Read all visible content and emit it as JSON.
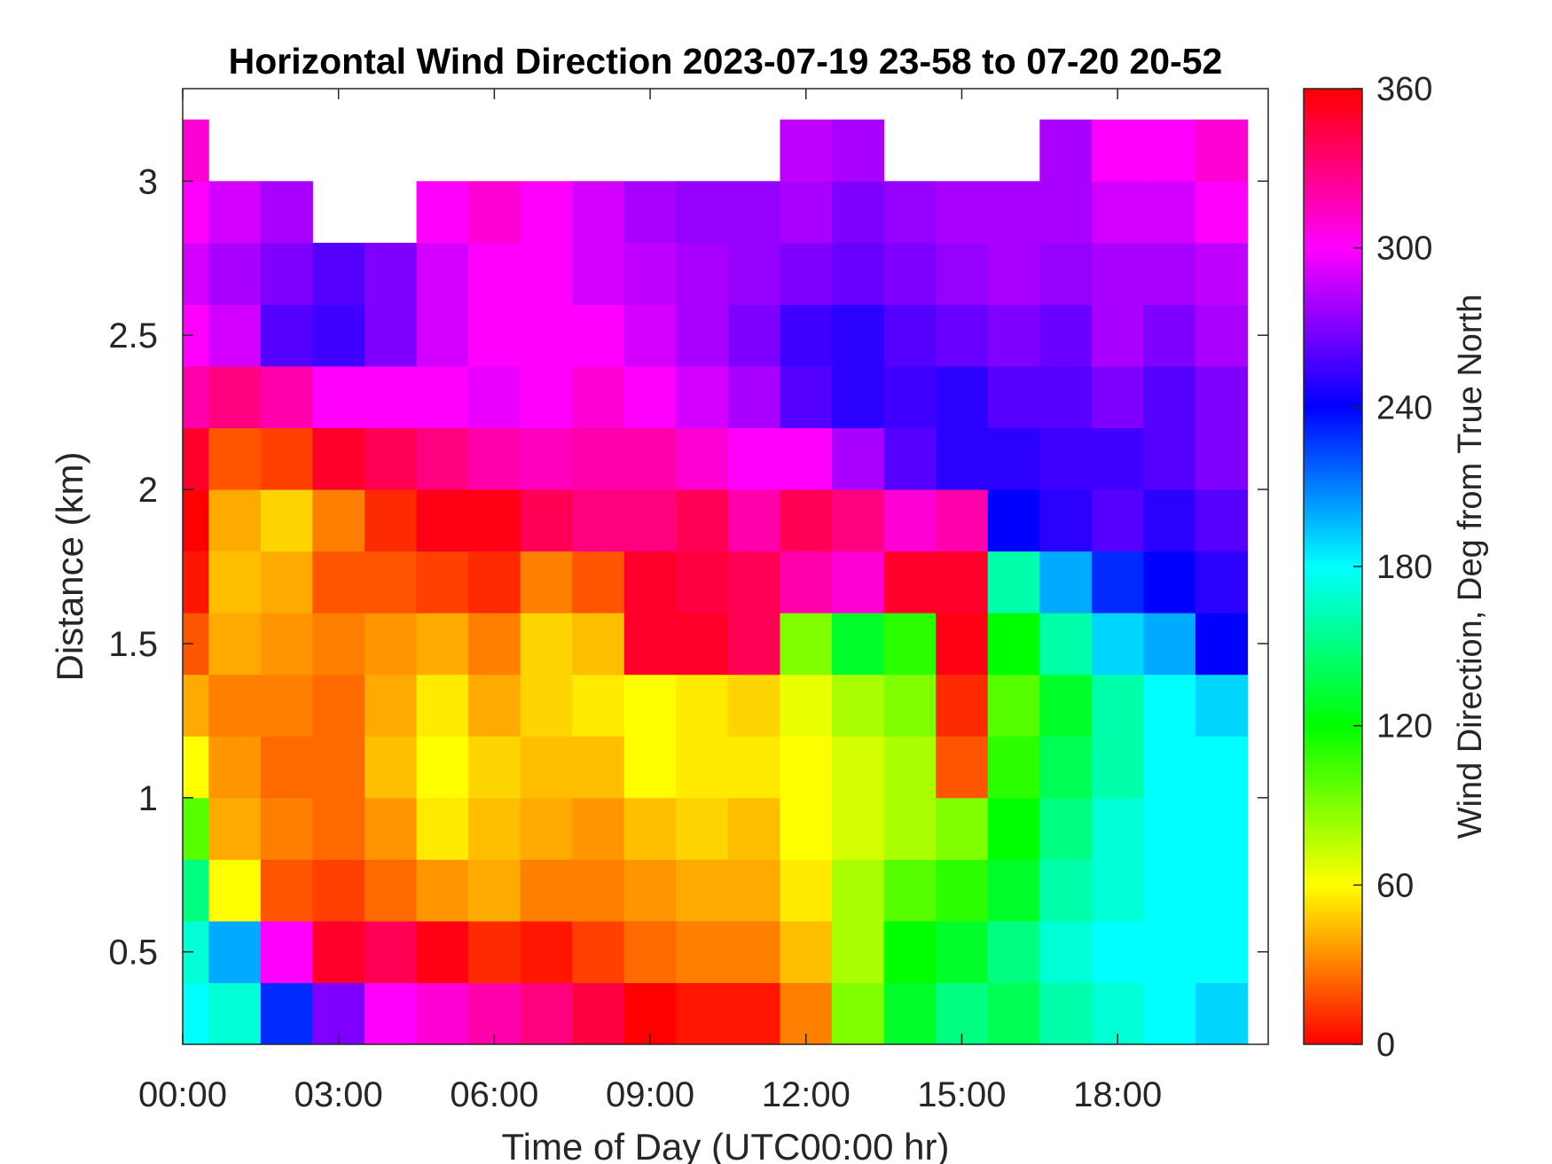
{
  "chart_data": {
    "type": "heatmap",
    "title": "Horizontal Wind Direction 2023-07-19 23-58 to 07-20 20-52",
    "xlabel": "Time of Day (UTC00:00 hr)",
    "ylabel": "Distance (km)",
    "colorbar_label": "Wind Direction, Deg from True North",
    "xlim_hours": [
      0,
      20.9
    ],
    "ylim_km": [
      0.2,
      3.3
    ],
    "clim": [
      0,
      360
    ],
    "colormap": "hsv",
    "x_ticks": [
      {
        "value": 0,
        "label": "00:00"
      },
      {
        "value": 3,
        "label": "03:00"
      },
      {
        "value": 6,
        "label": "06:00"
      },
      {
        "value": 9,
        "label": "09:00"
      },
      {
        "value": 12,
        "label": "12:00"
      },
      {
        "value": 15,
        "label": "15:00"
      },
      {
        "value": 18,
        "label": "18:00"
      }
    ],
    "y_ticks": [
      {
        "value": 0.5,
        "label": "0.5"
      },
      {
        "value": 1,
        "label": "1"
      },
      {
        "value": 1.5,
        "label": "1.5"
      },
      {
        "value": 2,
        "label": "2"
      },
      {
        "value": 2.5,
        "label": "2.5"
      },
      {
        "value": 3,
        "label": "3"
      }
    ],
    "colorbar_ticks": [
      {
        "value": 0,
        "label": "0"
      },
      {
        "value": 60,
        "label": "60"
      },
      {
        "value": 120,
        "label": "120"
      },
      {
        "value": 180,
        "label": "180"
      },
      {
        "value": 240,
        "label": "240"
      },
      {
        "value": 300,
        "label": "300"
      },
      {
        "value": 360,
        "label": "360"
      }
    ],
    "columns_hours": [
      0,
      1,
      2,
      3,
      4,
      5,
      6,
      7,
      8,
      9,
      10,
      11,
      12,
      13,
      14,
      15,
      16,
      17,
      18,
      19,
      20
    ],
    "rows_km": [
      0.3,
      0.5,
      0.7,
      0.9,
      1.1,
      1.3,
      1.5,
      1.7,
      1.9,
      2.1,
      2.3,
      2.5,
      2.7,
      2.9,
      3.1
    ],
    "direction_deg": [
      [
        180,
        170,
        230,
        270,
        300,
        310,
        320,
        330,
        345,
        0,
        5,
        5,
        30,
        90,
        130,
        150,
        140,
        160,
        170,
        180,
        190
      ],
      [
        170,
        200,
        300,
        350,
        340,
        355,
        10,
        5,
        15,
        25,
        30,
        30,
        45,
        80,
        120,
        130,
        150,
        170,
        180,
        180,
        180
      ],
      [
        150,
        60,
        20,
        15,
        25,
        35,
        40,
        30,
        30,
        35,
        40,
        40,
        55,
        80,
        100,
        110,
        130,
        160,
        170,
        180,
        180
      ],
      [
        100,
        40,
        30,
        25,
        35,
        55,
        45,
        40,
        35,
        45,
        50,
        45,
        60,
        70,
        80,
        90,
        120,
        150,
        170,
        180,
        180
      ],
      [
        60,
        35,
        25,
        25,
        45,
        60,
        50,
        45,
        45,
        60,
        55,
        55,
        60,
        70,
        80,
        20,
        110,
        140,
        160,
        180,
        180
      ],
      [
        40,
        30,
        30,
        25,
        40,
        55,
        40,
        50,
        55,
        60,
        55,
        50,
        65,
        80,
        90,
        10,
        100,
        130,
        160,
        180,
        190
      ],
      [
        20,
        40,
        35,
        30,
        35,
        40,
        30,
        50,
        45,
        350,
        350,
        340,
        90,
        130,
        110,
        355,
        120,
        160,
        190,
        200,
        240
      ],
      [
        5,
        45,
        40,
        20,
        20,
        15,
        10,
        30,
        20,
        350,
        345,
        340,
        320,
        310,
        350,
        350,
        160,
        200,
        230,
        240,
        250
      ],
      [
        0,
        40,
        50,
        30,
        10,
        355,
        355,
        340,
        330,
        330,
        340,
        320,
        340,
        330,
        310,
        320,
        240,
        250,
        260,
        250,
        260
      ],
      [
        350,
        20,
        15,
        350,
        340,
        330,
        320,
        315,
        320,
        320,
        310,
        300,
        300,
        280,
        260,
        250,
        250,
        255,
        255,
        260,
        270
      ],
      [
        320,
        330,
        320,
        300,
        300,
        300,
        295,
        300,
        310,
        300,
        290,
        280,
        260,
        250,
        255,
        250,
        260,
        260,
        270,
        260,
        270
      ],
      [
        300,
        290,
        260,
        255,
        270,
        290,
        300,
        300,
        300,
        290,
        280,
        270,
        255,
        250,
        260,
        265,
        270,
        265,
        280,
        270,
        280
      ],
      [
        290,
        280,
        270,
        260,
        270,
        290,
        300,
        300,
        290,
        285,
        280,
        275,
        270,
        265,
        270,
        275,
        280,
        275,
        280,
        280,
        285
      ],
      [
        300,
        290,
        280,
        null,
        null,
        300,
        310,
        300,
        290,
        280,
        275,
        275,
        280,
        270,
        275,
        280,
        280,
        280,
        290,
        290,
        300
      ],
      [
        310,
        null,
        null,
        null,
        null,
        null,
        null,
        null,
        null,
        null,
        null,
        null,
        285,
        280,
        null,
        null,
        null,
        280,
        300,
        300,
        310
      ]
    ]
  }
}
